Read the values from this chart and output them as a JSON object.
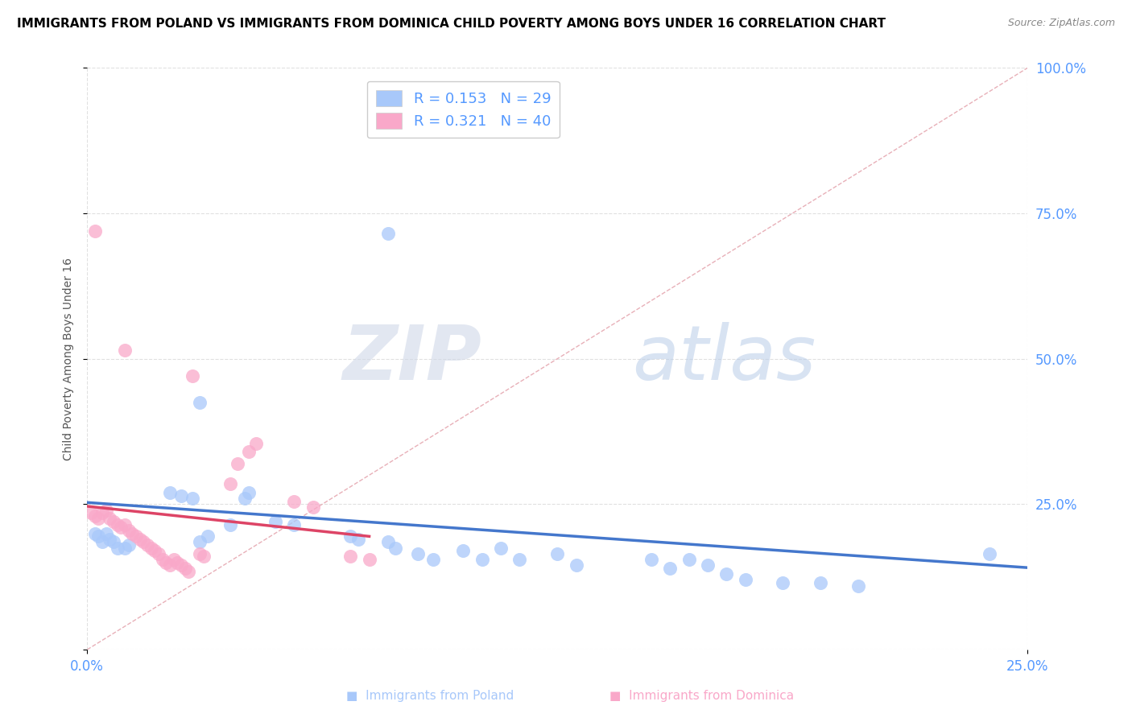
{
  "title": "IMMIGRANTS FROM POLAND VS IMMIGRANTS FROM DOMINICA CHILD POVERTY AMONG BOYS UNDER 16 CORRELATION CHART",
  "source": "Source: ZipAtlas.com",
  "ylabel": "Child Poverty Among Boys Under 16",
  "xlim": [
    0,
    0.25
  ],
  "ylim": [
    0,
    1.0
  ],
  "poland_scatter": [
    [
      0.002,
      0.2
    ],
    [
      0.003,
      0.195
    ],
    [
      0.004,
      0.185
    ],
    [
      0.005,
      0.2
    ],
    [
      0.006,
      0.19
    ],
    [
      0.007,
      0.185
    ],
    [
      0.008,
      0.175
    ],
    [
      0.01,
      0.175
    ],
    [
      0.011,
      0.18
    ],
    [
      0.022,
      0.27
    ],
    [
      0.025,
      0.265
    ],
    [
      0.028,
      0.26
    ],
    [
      0.03,
      0.185
    ],
    [
      0.032,
      0.195
    ],
    [
      0.038,
      0.215
    ],
    [
      0.042,
      0.26
    ],
    [
      0.043,
      0.27
    ],
    [
      0.05,
      0.22
    ],
    [
      0.055,
      0.215
    ],
    [
      0.07,
      0.195
    ],
    [
      0.072,
      0.19
    ],
    [
      0.08,
      0.185
    ],
    [
      0.082,
      0.175
    ],
    [
      0.088,
      0.165
    ],
    [
      0.092,
      0.155
    ],
    [
      0.1,
      0.17
    ],
    [
      0.105,
      0.155
    ],
    [
      0.11,
      0.175
    ],
    [
      0.115,
      0.155
    ],
    [
      0.125,
      0.165
    ],
    [
      0.13,
      0.145
    ],
    [
      0.15,
      0.155
    ],
    [
      0.155,
      0.14
    ],
    [
      0.16,
      0.155
    ],
    [
      0.165,
      0.145
    ],
    [
      0.17,
      0.13
    ],
    [
      0.175,
      0.12
    ],
    [
      0.185,
      0.115
    ],
    [
      0.195,
      0.115
    ],
    [
      0.205,
      0.11
    ],
    [
      0.24,
      0.165
    ],
    [
      0.08,
      0.715
    ],
    [
      0.03,
      0.425
    ],
    [
      0.095,
      0.96
    ]
  ],
  "dominica_scatter": [
    [
      0.001,
      0.235
    ],
    [
      0.002,
      0.23
    ],
    [
      0.003,
      0.225
    ],
    [
      0.004,
      0.235
    ],
    [
      0.005,
      0.24
    ],
    [
      0.006,
      0.225
    ],
    [
      0.007,
      0.22
    ],
    [
      0.008,
      0.215
    ],
    [
      0.009,
      0.21
    ],
    [
      0.01,
      0.215
    ],
    [
      0.011,
      0.205
    ],
    [
      0.012,
      0.2
    ],
    [
      0.013,
      0.195
    ],
    [
      0.014,
      0.19
    ],
    [
      0.015,
      0.185
    ],
    [
      0.016,
      0.18
    ],
    [
      0.017,
      0.175
    ],
    [
      0.018,
      0.17
    ],
    [
      0.019,
      0.165
    ],
    [
      0.02,
      0.155
    ],
    [
      0.021,
      0.15
    ],
    [
      0.022,
      0.145
    ],
    [
      0.023,
      0.155
    ],
    [
      0.024,
      0.15
    ],
    [
      0.025,
      0.145
    ],
    [
      0.026,
      0.14
    ],
    [
      0.027,
      0.135
    ],
    [
      0.03,
      0.165
    ],
    [
      0.031,
      0.16
    ],
    [
      0.038,
      0.285
    ],
    [
      0.04,
      0.32
    ],
    [
      0.043,
      0.34
    ],
    [
      0.045,
      0.355
    ],
    [
      0.055,
      0.255
    ],
    [
      0.06,
      0.245
    ],
    [
      0.07,
      0.16
    ],
    [
      0.075,
      0.155
    ],
    [
      0.002,
      0.72
    ],
    [
      0.01,
      0.515
    ],
    [
      0.028,
      0.47
    ]
  ],
  "poland_line_color": "#4477cc",
  "dominica_line_color": "#dd4466",
  "diagonal_color": "#e8b0b8",
  "scatter_poland_color": "#a8c8fa",
  "scatter_dominica_color": "#f9a8c9",
  "background_color": "#ffffff",
  "watermark_zip": "ZIP",
  "watermark_atlas": "atlas",
  "title_fontsize": 11,
  "source_fontsize": 9,
  "right_tick_color": "#5599ff",
  "bottom_tick_color": "#5599ff"
}
